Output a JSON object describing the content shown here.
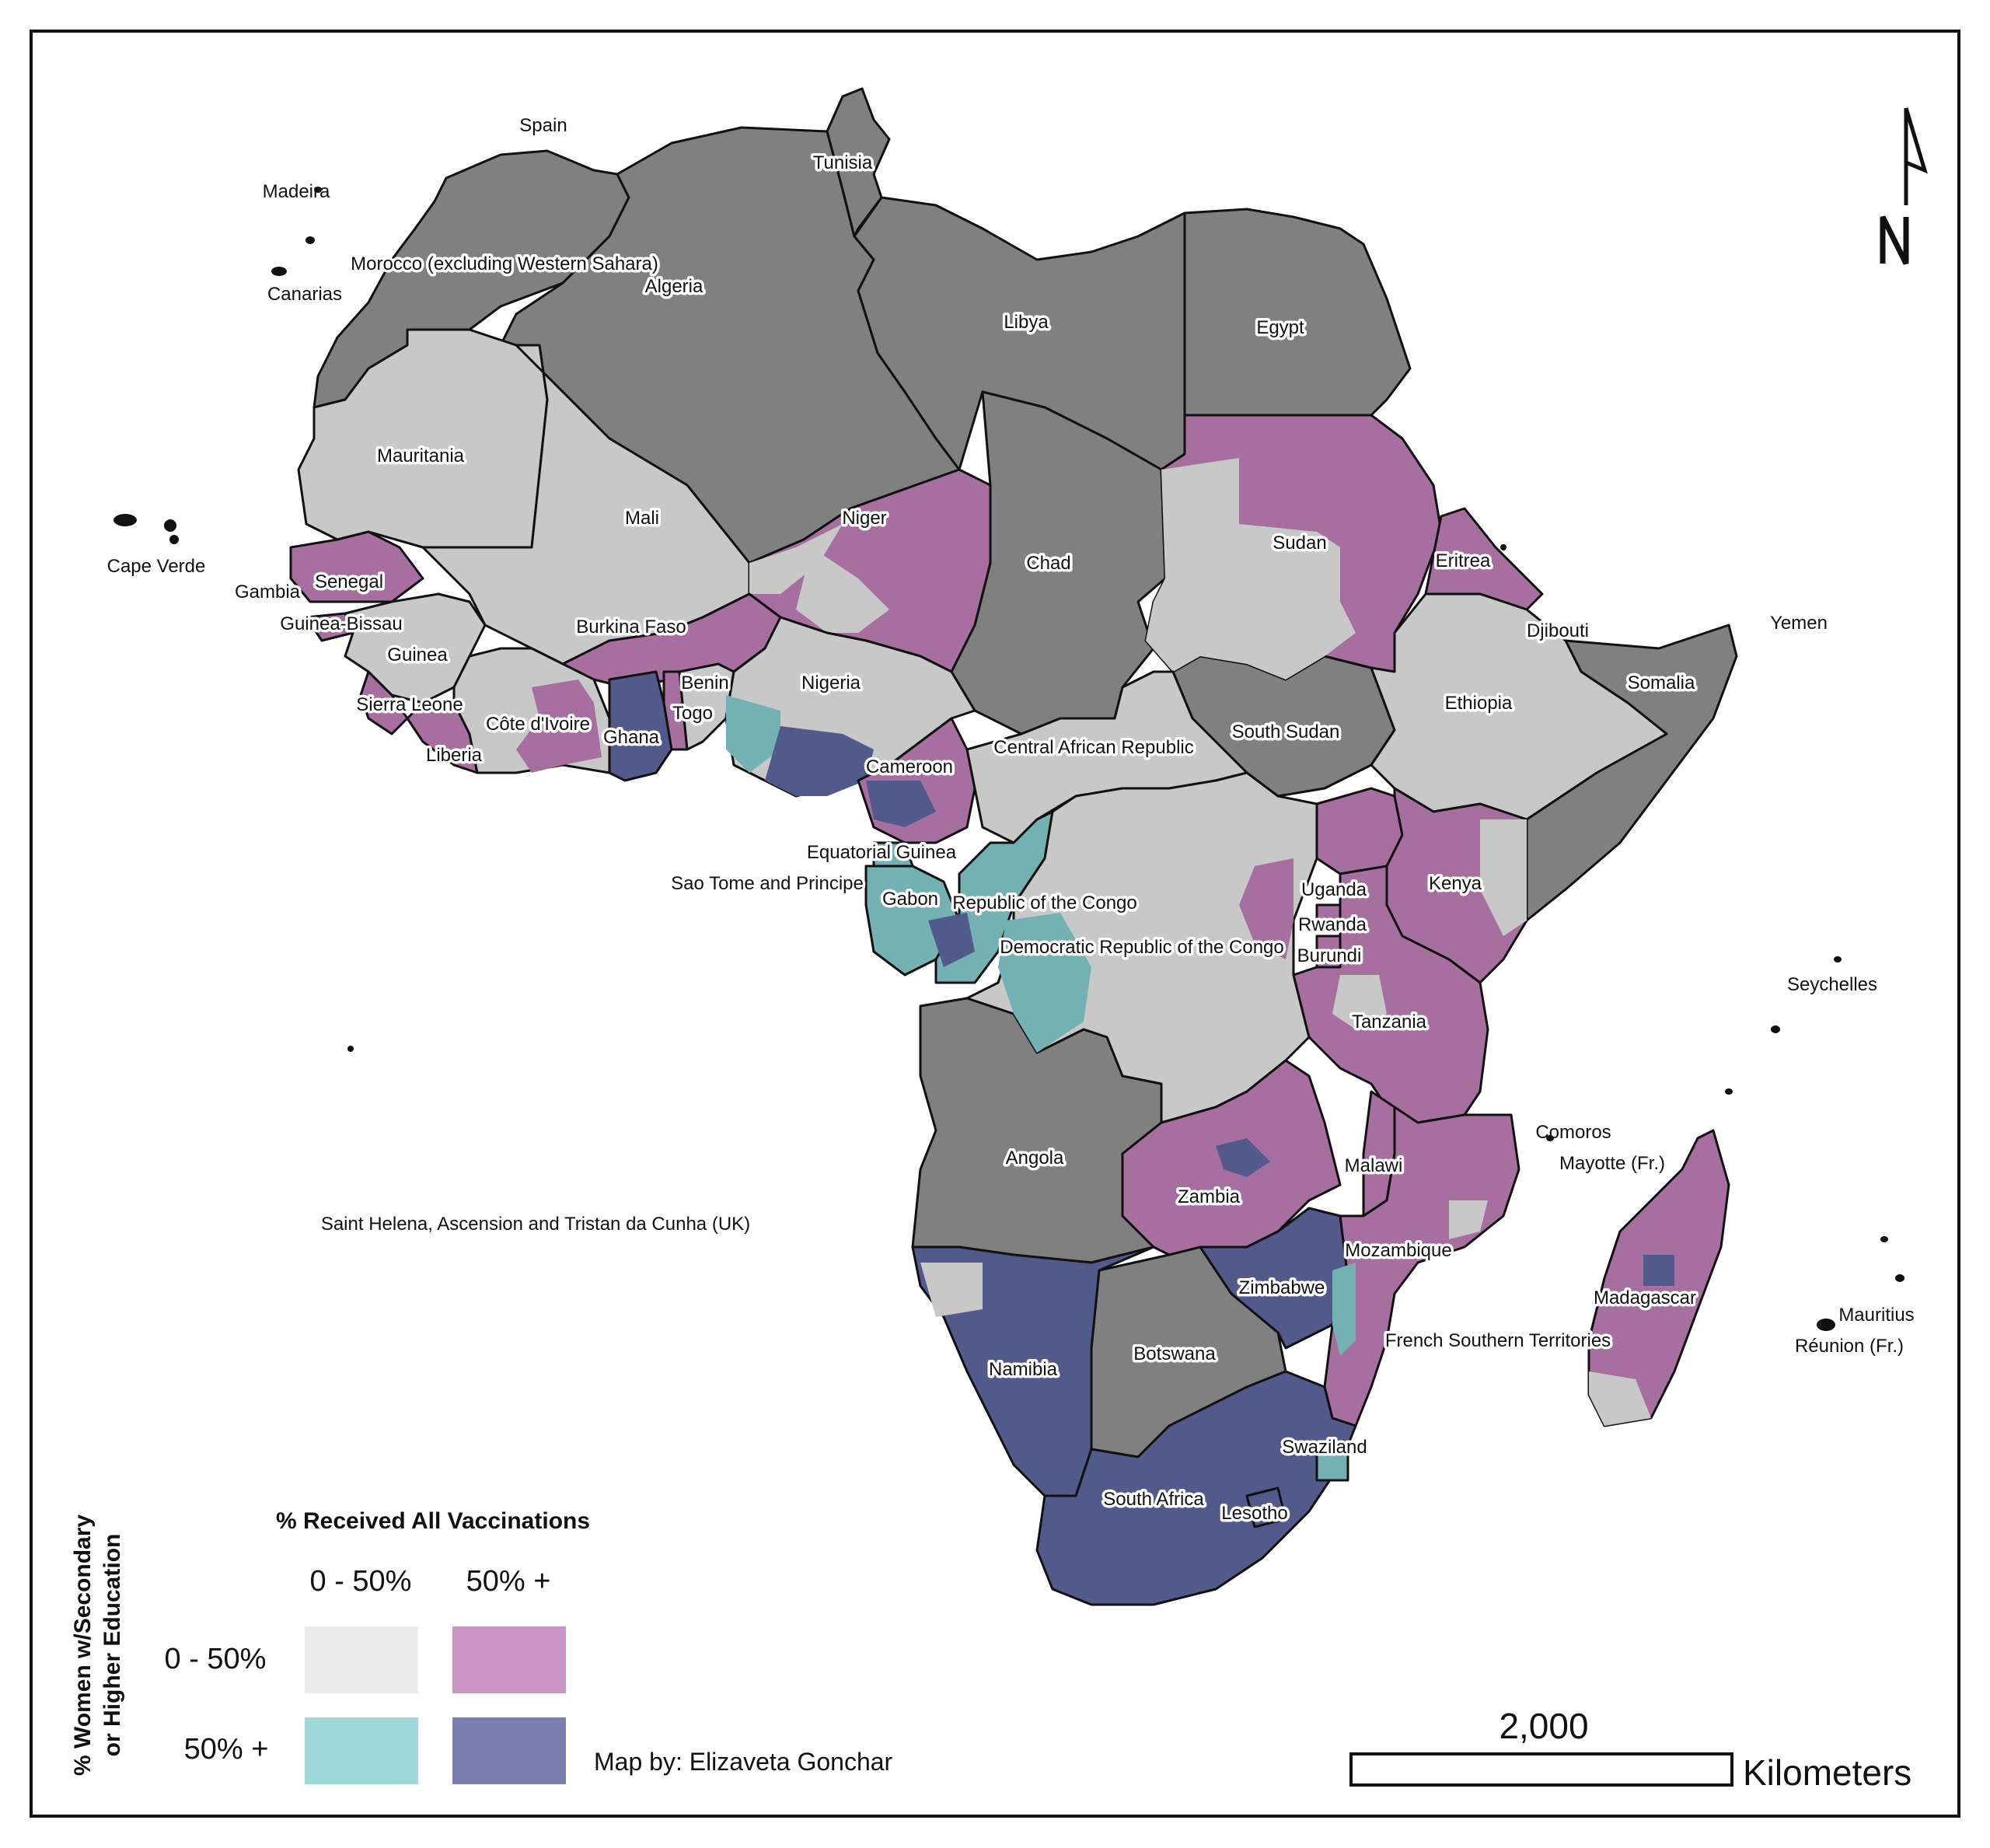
{
  "colors": {
    "low_edu_low_vacc": "#c8c8c8",
    "low_edu_high_vacc": "#a76fa0",
    "high_edu_low_vacc": "#74b1b3",
    "high_edu_high_vacc": "#525a8c",
    "no_data": "#808080",
    "legend_low_low": "#ececec",
    "legend_low_high": "#c995c4",
    "legend_high_low": "#9fd8d8",
    "legend_high_high": "#7a7db0"
  },
  "labels": {
    "spain": "Spain",
    "madeira": "Madeira",
    "tunisia": "Tunisia",
    "morocco": "Morocco (excluding Western Sahara)",
    "canarias": "Canarias",
    "algeria": "Algeria",
    "libya": "Libya",
    "egypt": "Egypt",
    "mauritania": "Mauritania",
    "mali": "Mali",
    "niger": "Niger",
    "chad": "Chad",
    "sudan": "Sudan",
    "eritrea": "Eritrea",
    "cape_verde": "Cape Verde",
    "senegal": "Senegal",
    "gambia": "Gambia",
    "guinea_bissau": "Guinea-Bissau",
    "burkina_faso": "Burkina Faso",
    "guinea": "Guinea",
    "djibouti": "Djibouti",
    "yemen": "Yemen",
    "somalia": "Somalia",
    "benin": "Benin",
    "nigeria": "Nigeria",
    "sierra_leone": "Sierra Leone",
    "cote_divoire": "Côte d'Ivoire",
    "togo": "Togo",
    "ghana": "Ghana",
    "ethiopia": "Ethiopia",
    "south_sudan": "South Sudan",
    "liberia": "Liberia",
    "car": "Central African Republic",
    "cameroon": "Cameroon",
    "equatorial_guinea": "Equatorial Guinea",
    "sao_tome": "Sao Tome and Principe",
    "gabon": "Gabon",
    "congo": "Republic of the Congo",
    "uganda": "Uganda",
    "kenya": "Kenya",
    "rwanda": "Rwanda",
    "drc": "Democratic Republic of the Congo",
    "burundi": "Burundi",
    "seychelles": "Seychelles",
    "tanzania": "Tanzania",
    "comoros": "Comoros",
    "mayotte": "Mayotte (Fr.)",
    "angola": "Angola",
    "malawi": "Malawi",
    "zambia": "Zambia",
    "saint_helena": "Saint Helena, Ascension and Tristan da Cunha (UK)",
    "mozambique": "Mozambique",
    "zimbabwe": "Zimbabwe",
    "madagascar": "Madagascar",
    "mauritius": "Mauritius",
    "french_southern": "French Southern Territories",
    "reunion": "Réunion (Fr.)",
    "namibia": "Namibia",
    "botswana": "Botswana",
    "swaziland": "Swaziland",
    "south_africa": "South Africa",
    "lesotho": "Lesotho"
  },
  "legend": {
    "title": "% Received All Vaccinations",
    "col_low": "0 - 50%",
    "col_high": "50% +",
    "row_axis_line1": "% Women w/Secondary",
    "row_axis_line2": "or Higher Education",
    "row_low": "0 - 50%",
    "row_high": "50% +"
  },
  "credit": "Map by: Elizaveta Gonchar",
  "scale_bar": {
    "value": "2,000",
    "unit": "Kilometers"
  },
  "north_arrow_icon": "north-arrow-icon"
}
